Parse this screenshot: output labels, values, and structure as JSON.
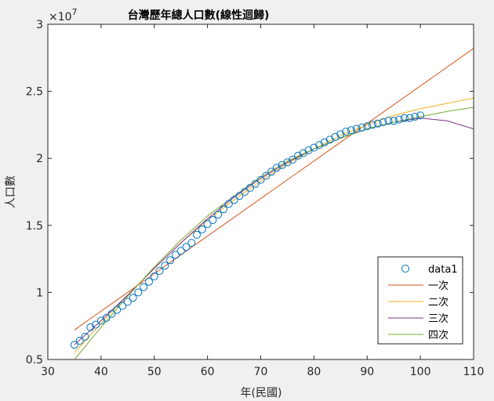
{
  "chart_data": {
    "type": "scatter",
    "title": "台灣歷年總人口數(線性迴歸)",
    "xlabel": "年(民國)",
    "ylabel": "人口數",
    "exponent_label": "×10",
    "exponent_power": "7",
    "xlim": [
      30,
      110
    ],
    "ylim": [
      0.5,
      3
    ],
    "xticks": [
      30,
      40,
      50,
      60,
      70,
      80,
      90,
      100,
      110
    ],
    "yticks": [
      0.5,
      1,
      1.5,
      2,
      2.5,
      3
    ],
    "grid": false,
    "legend_position": "bottom-right",
    "data": {
      "name": "data1",
      "color": "#0072bd",
      "x": [
        35,
        36,
        37,
        38,
        39,
        40,
        41,
        42,
        43,
        44,
        45,
        46,
        47,
        48,
        49,
        50,
        51,
        52,
        53,
        54,
        55,
        56,
        57,
        58,
        59,
        60,
        61,
        62,
        63,
        64,
        65,
        66,
        67,
        68,
        69,
        70,
        71,
        72,
        73,
        74,
        75,
        76,
        77,
        78,
        79,
        80,
        81,
        82,
        83,
        84,
        85,
        86,
        87,
        88,
        89,
        90,
        91,
        92,
        93,
        94,
        95,
        96,
        97,
        98,
        99,
        100
      ],
      "y": [
        0.61,
        0.64,
        0.67,
        0.74,
        0.76,
        0.79,
        0.81,
        0.84,
        0.87,
        0.9,
        0.93,
        0.96,
        1.0,
        1.04,
        1.08,
        1.12,
        1.16,
        1.2,
        1.24,
        1.28,
        1.31,
        1.34,
        1.37,
        1.43,
        1.47,
        1.51,
        1.54,
        1.58,
        1.62,
        1.66,
        1.69,
        1.72,
        1.75,
        1.78,
        1.81,
        1.84,
        1.87,
        1.9,
        1.93,
        1.95,
        1.97,
        1.99,
        2.02,
        2.04,
        2.06,
        2.08,
        2.1,
        2.12,
        2.14,
        2.16,
        2.18,
        2.2,
        2.21,
        2.22,
        2.23,
        2.24,
        2.25,
        2.26,
        2.27,
        2.28,
        2.28,
        2.29,
        2.3,
        2.3,
        2.31,
        2.32
      ]
    },
    "fits": [
      {
        "name": "一次",
        "color": "#d95319",
        "x": [
          35,
          110
        ],
        "y": [
          0.72,
          2.82
        ]
      },
      {
        "name": "二次",
        "color": "#edb120",
        "x": [
          35,
          40,
          45,
          50,
          55,
          60,
          65,
          70,
          75,
          80,
          85,
          90,
          95,
          100,
          105,
          110
        ],
        "y": [
          0.55,
          0.77,
          0.98,
          1.18,
          1.37,
          1.54,
          1.69,
          1.83,
          1.96,
          2.07,
          2.17,
          2.25,
          2.32,
          2.37,
          2.41,
          2.45
        ]
      },
      {
        "name": "三次",
        "color": "#7e2f8e",
        "x": [
          35,
          40,
          45,
          50,
          55,
          60,
          65,
          70,
          75,
          80,
          85,
          90,
          95,
          100,
          105,
          110
        ],
        "y": [
          0.61,
          0.79,
          0.98,
          1.18,
          1.37,
          1.55,
          1.71,
          1.85,
          1.97,
          2.07,
          2.15,
          2.22,
          2.27,
          2.3,
          2.28,
          2.22
        ]
      },
      {
        "name": "四次",
        "color": "#77ac30",
        "x": [
          35,
          40,
          45,
          50,
          55,
          60,
          65,
          70,
          75,
          80,
          85,
          90,
          95,
          100,
          105,
          110
        ],
        "y": [
          0.5,
          0.74,
          0.97,
          1.19,
          1.39,
          1.57,
          1.72,
          1.86,
          1.98,
          2.07,
          2.15,
          2.22,
          2.27,
          2.31,
          2.35,
          2.38
        ]
      }
    ]
  }
}
